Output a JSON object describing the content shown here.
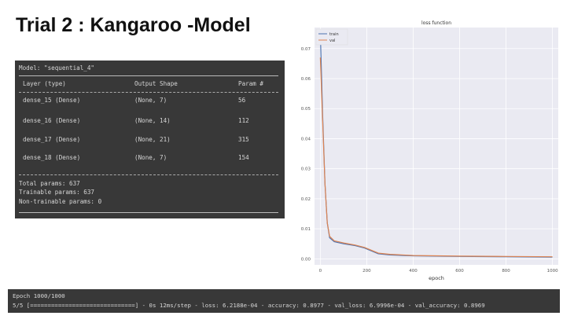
{
  "slide": {
    "title": "Trial 2 : Kangaroo -Model"
  },
  "model_summary": {
    "header": "Model: \"sequential_4\"",
    "columns": [
      "Layer (type)",
      "Output Shape",
      "Param #"
    ],
    "rows": [
      [
        "dense_15 (Dense)",
        "(None, 7)",
        "56"
      ],
      [
        "dense_16 (Dense)",
        "(None, 14)",
        "112"
      ],
      [
        "dense_17 (Dense)",
        "(None, 21)",
        "315"
      ],
      [
        "dense_18 (Dense)",
        "(None, 7)",
        "154"
      ]
    ],
    "totals": [
      "Total params: 637",
      "Trainable params: 637",
      "Non-trainable params: 0"
    ]
  },
  "chart_data": {
    "type": "line",
    "title": "loss function",
    "xlabel": "epoch",
    "ylabel": "",
    "xlim": [
      -25,
      1025
    ],
    "ylim": [
      -0.002,
      0.077
    ],
    "xticks": [
      0,
      200,
      400,
      600,
      800,
      1000
    ],
    "yticks": [
      "0.00",
      "0.01",
      "0.02",
      "0.03",
      "0.04",
      "0.05",
      "0.06",
      "0.07"
    ],
    "grid": true,
    "legend": "top-left",
    "series": [
      {
        "name": "train",
        "color": "#4c72b0",
        "x": [
          0,
          10,
          20,
          30,
          40,
          60,
          100,
          150,
          190,
          250,
          300,
          400,
          600,
          800,
          1000
        ],
        "y": [
          0.075,
          0.048,
          0.025,
          0.012,
          0.007,
          0.0057,
          0.005,
          0.0044,
          0.0036,
          0.0017,
          0.0013,
          0.001,
          0.0008,
          0.0007,
          0.0006
        ]
      },
      {
        "name": "val",
        "color": "#dd8452",
        "x": [
          0,
          10,
          20,
          30,
          40,
          60,
          100,
          150,
          190,
          250,
          300,
          400,
          600,
          800,
          1000
        ],
        "y": [
          0.067,
          0.046,
          0.025,
          0.012,
          0.0075,
          0.006,
          0.0053,
          0.0046,
          0.0038,
          0.0019,
          0.0015,
          0.0011,
          0.0009,
          0.0008,
          0.0007
        ]
      }
    ]
  },
  "terminal": {
    "line1": "Epoch 1000/1000",
    "line2": "5/5 [==============================] - 0s 12ms/step - loss: 6.2188e-04 - accuracy: 0.8977 - val_loss: 6.9996e-04 - val_accuracy: 0.8969"
  }
}
